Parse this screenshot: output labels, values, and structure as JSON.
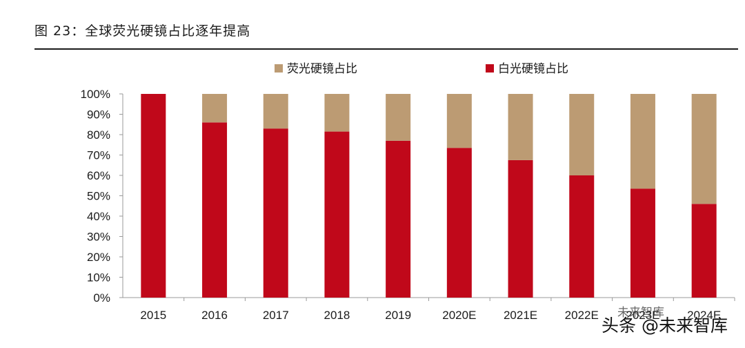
{
  "figure": {
    "title": "图 23：全球荧光硬镜占比逐年提高"
  },
  "colors": {
    "fluorescent": "#BC9B73",
    "white_light": "#C0081A"
  },
  "watermark": {
    "main": "头条 @未来智库",
    "small": "未来智库"
  },
  "chart_data": {
    "type": "bar",
    "stacked": true,
    "title": "",
    "xlabel": "",
    "ylabel": "",
    "categories": [
      "2015",
      "2016",
      "2017",
      "2018",
      "2019",
      "2020E",
      "2021E",
      "2022E",
      "2023E",
      "2024E"
    ],
    "ylim": [
      0,
      100
    ],
    "yticks": [
      "0%",
      "10%",
      "20%",
      "30%",
      "40%",
      "50%",
      "60%",
      "70%",
      "80%",
      "90%",
      "100%"
    ],
    "legend_position": "top-center",
    "series": [
      {
        "name": "白光硬镜占比",
        "color": "#C0081A",
        "values": [
          100,
          86,
          83,
          81.5,
          77,
          73.5,
          67.5,
          60,
          53.5,
          46
        ]
      },
      {
        "name": "荧光硬镜占比",
        "color": "#BC9B73",
        "values": [
          0,
          14,
          17,
          18.5,
          23,
          26.5,
          32.5,
          40,
          46.5,
          54
        ]
      }
    ],
    "legend_order": [
      "荧光硬镜占比",
      "白光硬镜占比"
    ]
  }
}
